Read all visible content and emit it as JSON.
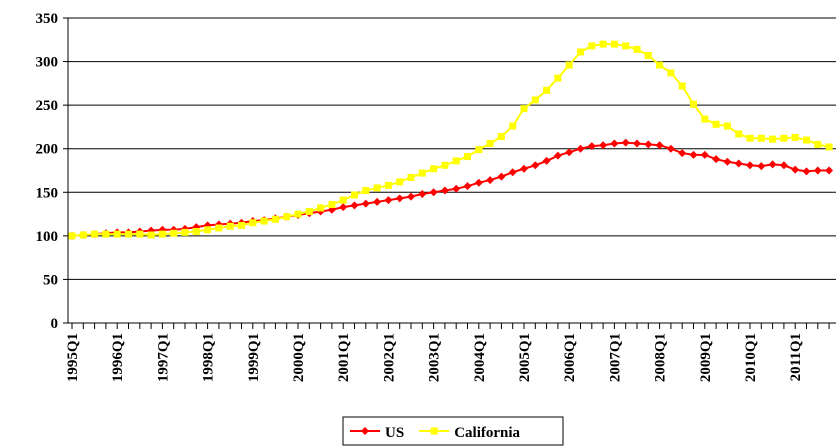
{
  "chart_data": {
    "type": "line",
    "categories": [
      "1995Q1",
      null,
      null,
      null,
      "1996Q1",
      null,
      null,
      null,
      "1997Q1",
      null,
      null,
      null,
      "1998Q1",
      null,
      null,
      null,
      "1999Q1",
      null,
      null,
      null,
      "2000Q1",
      null,
      null,
      null,
      "2001Q1",
      null,
      null,
      null,
      "2002Q1",
      null,
      null,
      null,
      "2003Q1",
      null,
      null,
      null,
      "2004Q1",
      null,
      null,
      null,
      "2005Q1",
      null,
      null,
      null,
      "2006Q1",
      null,
      null,
      null,
      "2007Q1",
      null,
      null,
      null,
      "2008Q1",
      null,
      null,
      null,
      "2009Q1",
      null,
      null,
      null,
      "2010Q1",
      null,
      null,
      null,
      "2011Q1",
      null,
      null,
      null
    ],
    "series": [
      {
        "name": "US",
        "color": "#ff0000",
        "marker": "diamond",
        "values": [
          100,
          101,
          102,
          103,
          104,
          104,
          105,
          106,
          107,
          107,
          108,
          110,
          112,
          113,
          114,
          115,
          117,
          118,
          120,
          122,
          124,
          126,
          128,
          130,
          133,
          135,
          137,
          139,
          141,
          143,
          145,
          148,
          150,
          152,
          154,
          157,
          161,
          164,
          168,
          173,
          177,
          181,
          186,
          192,
          196,
          200,
          203,
          204,
          206,
          207,
          206,
          205,
          204,
          200,
          195,
          193,
          193,
          188,
          185,
          183,
          181,
          180,
          182,
          181,
          176,
          174,
          175,
          175
        ]
      },
      {
        "name": "California",
        "color": "#ffff00",
        "marker": "square",
        "values": [
          100,
          101,
          102,
          102,
          102,
          102,
          102,
          101,
          102,
          103,
          104,
          105,
          107,
          109,
          111,
          112,
          115,
          117,
          119,
          122,
          125,
          128,
          132,
          136,
          141,
          147,
          152,
          155,
          158,
          162,
          167,
          172,
          177,
          181,
          186,
          191,
          199,
          206,
          214,
          226,
          246,
          256,
          267,
          281,
          296,
          311,
          318,
          320,
          320,
          318,
          314,
          307,
          296,
          287,
          272,
          251,
          234,
          228,
          226,
          217,
          212,
          212,
          211,
          212,
          213,
          210,
          205,
          202
        ]
      }
    ],
    "ylim": [
      0,
      350
    ],
    "yticks": [
      0,
      50,
      100,
      150,
      200,
      250,
      300,
      350
    ],
    "grid": true,
    "legend": "bottom"
  }
}
